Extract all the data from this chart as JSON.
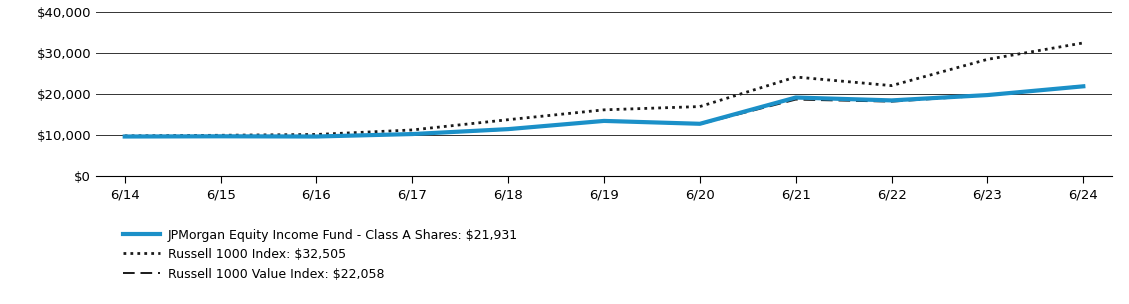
{
  "x_labels": [
    "6/14",
    "6/15",
    "6/16",
    "6/17",
    "6/18",
    "6/19",
    "6/20",
    "6/21",
    "6/22",
    "6/23",
    "6/24"
  ],
  "x_positions": [
    0,
    1,
    2,
    3,
    4,
    5,
    6,
    7,
    8,
    9,
    10
  ],
  "fund_values": [
    9700,
    9750,
    9700,
    10300,
    11500,
    13500,
    12800,
    19200,
    18500,
    19800,
    21931
  ],
  "russell1000_values": [
    9850,
    10000,
    10200,
    11300,
    13800,
    16200,
    17000,
    24200,
    22100,
    28500,
    32505
  ],
  "russell1000value_values": [
    9700,
    9750,
    9700,
    10200,
    11400,
    13500,
    12700,
    18700,
    18200,
    19700,
    22058
  ],
  "fund_color": "#1b90c8",
  "russell1000_color": "#1a1a1a",
  "russell1000value_color": "#1a1a1a",
  "fund_label": "JPMorgan Equity Income Fund - Class A Shares: $21,931",
  "russell1000_label": "Russell 1000 Index: $32,505",
  "russell1000value_label": "Russell 1000 Value Index: $22,058",
  "ylim": [
    0,
    40000
  ],
  "yticks": [
    0,
    10000,
    20000,
    30000,
    40000
  ],
  "ytick_labels": [
    "$0",
    "$10,000",
    "$20,000",
    "$30,000",
    "$40,000"
  ],
  "background_color": "#ffffff",
  "grid_color": "#333333"
}
